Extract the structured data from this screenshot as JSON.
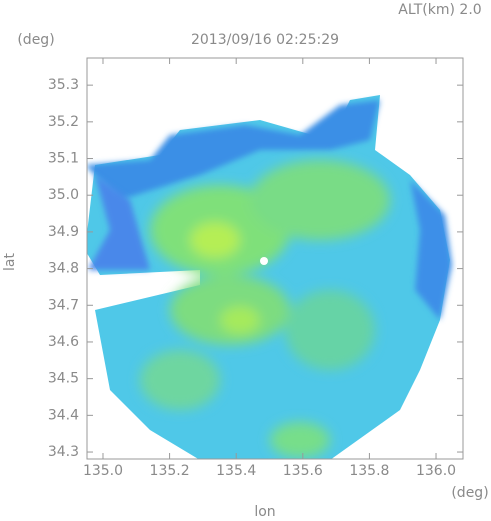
{
  "chart_data": {
    "type": "radar-map",
    "title": "2013/09/16 02:25:29",
    "subtitle": "ALT(km) 2.0",
    "x_label": "lon",
    "y_label": "lat",
    "x_unit": "(deg)",
    "y_unit": "(deg)",
    "xlim": [
      134.952,
      136.081
    ],
    "ylim": [
      34.281,
      35.374
    ],
    "xticks": [
      {
        "value": 135,
        "label": "135.0"
      },
      135.2,
      135.4,
      135.6,
      135.8,
      {
        "value": 136,
        "label": "136.0"
      }
    ],
    "yticks": [
      34.3,
      34.4,
      34.5,
      34.6,
      34.7,
      34.8,
      34.9,
      {
        "value": 35,
        "label": "35.0"
      },
      35.1,
      35.2,
      35.3
    ]
  }
}
